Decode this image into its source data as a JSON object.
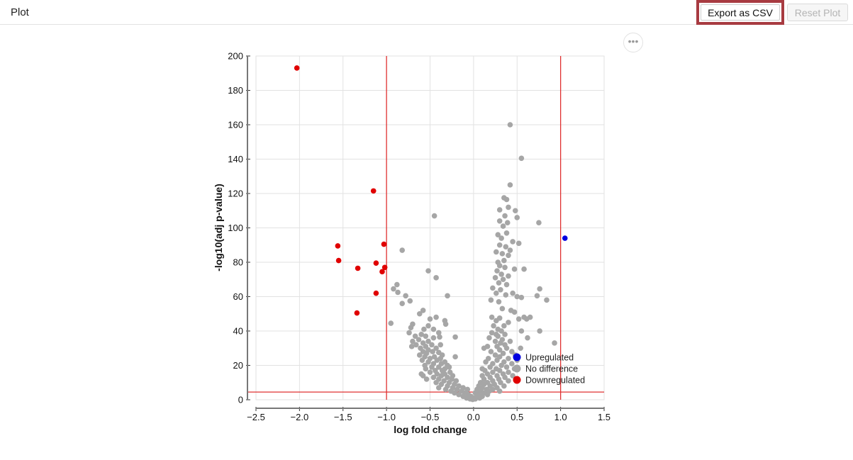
{
  "header": {
    "title": "Plot",
    "export_label": "Export as CSV",
    "reset_label": "Reset Plot",
    "more_icon": "ellipsis-icon",
    "more_symbol": "•••"
  },
  "colors": {
    "upregulated": "#0000e0",
    "no_difference": "#a6a6a6",
    "downregulated": "#e00000",
    "threshold": "#e03030",
    "highlight_border": "#a83b41"
  },
  "chart_data": {
    "type": "scatter",
    "title": "",
    "xlabel": "log fold change",
    "ylabel": "-log10(adj p-value)",
    "xlim": [
      -2.5,
      1.5
    ],
    "ylim": [
      0,
      200
    ],
    "x_ticks": [
      -2.5,
      -2.0,
      -1.5,
      -1.0,
      -0.5,
      0.0,
      0.5,
      1.0,
      1.5
    ],
    "x_tick_labels": [
      "−2.5",
      "−2.0",
      "−1.5",
      "−1.0",
      "−0.5",
      "0.0",
      "0.5",
      "1.0",
      "1.5"
    ],
    "y_ticks": [
      0,
      20,
      40,
      60,
      80,
      100,
      120,
      140,
      160,
      180,
      200
    ],
    "y_tick_labels": [
      "0",
      "20",
      "40",
      "60",
      "80",
      "100",
      "120",
      "140",
      "160",
      "180",
      "200"
    ],
    "grid": true,
    "thresholds": {
      "vertical": [
        -1.0,
        1.0
      ],
      "horizontal": 4.5
    },
    "legend": {
      "position": "bottom-right",
      "entries": [
        "Upregulated",
        "No difference",
        "Downregulated"
      ]
    },
    "series": [
      {
        "name": "Upregulated",
        "points": [
          [
            1.05,
            94
          ]
        ]
      },
      {
        "name": "Downregulated",
        "points": [
          [
            -2.03,
            193
          ],
          [
            -1.15,
            121.5
          ],
          [
            -1.56,
            89.5
          ],
          [
            -1.03,
            90.5
          ],
          [
            -1.55,
            81
          ],
          [
            -1.12,
            79.5
          ],
          [
            -1.33,
            76.5
          ],
          [
            -1.02,
            77
          ],
          [
            -1.05,
            74.5
          ],
          [
            -1.12,
            62
          ],
          [
            -1.34,
            50.5
          ]
        ]
      },
      {
        "name": "No difference",
        "points": [
          [
            0.42,
            160
          ],
          [
            0.55,
            140.5
          ],
          [
            0.42,
            125
          ],
          [
            0.35,
            117.5
          ],
          [
            0.38,
            116.5
          ],
          [
            0.4,
            112
          ],
          [
            0.3,
            110.5
          ],
          [
            0.48,
            110
          ],
          [
            0.36,
            107
          ],
          [
            0.5,
            106
          ],
          [
            0.3,
            104
          ],
          [
            0.39,
            103
          ],
          [
            0.75,
            103
          ],
          [
            -0.45,
            107
          ],
          [
            0.34,
            101
          ],
          [
            0.38,
            97
          ],
          [
            0.28,
            96
          ],
          [
            0.32,
            94
          ],
          [
            0.45,
            92
          ],
          [
            0.52,
            91
          ],
          [
            0.3,
            90
          ],
          [
            0.37,
            89
          ],
          [
            0.42,
            87
          ],
          [
            0.26,
            86
          ],
          [
            0.33,
            85
          ],
          [
            0.4,
            84
          ],
          [
            -0.82,
            87
          ],
          [
            0.35,
            81
          ],
          [
            0.28,
            80
          ],
          [
            0.3,
            78
          ],
          [
            0.36,
            77
          ],
          [
            0.47,
            76
          ],
          [
            0.58,
            76
          ],
          [
            0.27,
            75
          ],
          [
            0.32,
            73
          ],
          [
            0.4,
            72
          ],
          [
            -0.52,
            75
          ],
          [
            0.25,
            71
          ],
          [
            0.34,
            70
          ],
          [
            -0.43,
            71
          ],
          [
            0.29,
            68
          ],
          [
            0.38,
            67
          ],
          [
            -0.88,
            67
          ],
          [
            0.22,
            65
          ],
          [
            0.31,
            64
          ],
          [
            -0.92,
            64.5
          ],
          [
            0.76,
            64.5
          ],
          [
            -0.87,
            62.5
          ],
          [
            0.26,
            62
          ],
          [
            0.45,
            62
          ],
          [
            0.37,
            61
          ],
          [
            0.5,
            60
          ],
          [
            0.55,
            59.5
          ],
          [
            0.73,
            60.5
          ],
          [
            -0.3,
            60.5
          ],
          [
            -0.78,
            60.5
          ],
          [
            0.84,
            58
          ],
          [
            -0.73,
            57.5
          ],
          [
            0.2,
            58
          ],
          [
            0.29,
            57
          ],
          [
            -0.82,
            56
          ],
          [
            0.33,
            53
          ],
          [
            0.43,
            52
          ],
          [
            -0.58,
            52
          ],
          [
            0.47,
            51
          ],
          [
            -0.62,
            50
          ],
          [
            0.58,
            48
          ],
          [
            0.65,
            48
          ],
          [
            0.52,
            47
          ],
          [
            0.3,
            47.5
          ],
          [
            -0.43,
            48
          ],
          [
            0.21,
            48
          ],
          [
            0.61,
            47
          ],
          [
            -0.5,
            47
          ],
          [
            0.26,
            46
          ],
          [
            0.4,
            45
          ],
          [
            -0.95,
            44.5
          ],
          [
            -0.7,
            44
          ],
          [
            -0.32,
            44
          ],
          [
            0.23,
            43
          ],
          [
            0.35,
            43
          ],
          [
            -0.52,
            43
          ],
          [
            -0.72,
            42
          ],
          [
            0.28,
            41
          ],
          [
            -0.57,
            41
          ],
          [
            -0.46,
            41
          ],
          [
            0.32,
            40
          ],
          [
            0.55,
            40
          ],
          [
            0.76,
            40
          ],
          [
            -0.74,
            39
          ],
          [
            -0.4,
            39
          ],
          [
            0.21,
            39
          ],
          [
            -0.6,
            38
          ],
          [
            0.26,
            38
          ],
          [
            0.36,
            38
          ],
          [
            -0.67,
            37
          ],
          [
            -0.55,
            37
          ],
          [
            0.28,
            37
          ],
          [
            -0.46,
            36
          ],
          [
            0.62,
            36
          ],
          [
            0.18,
            36
          ],
          [
            -0.63,
            35
          ],
          [
            0.33,
            35
          ],
          [
            -0.21,
            36.5
          ],
          [
            -0.39,
            36.5
          ],
          [
            -0.7,
            34
          ],
          [
            -0.52,
            34
          ],
          [
            0.25,
            34
          ],
          [
            0.42,
            34
          ],
          [
            -0.58,
            33
          ],
          [
            0.31,
            33
          ],
          [
            0.93,
            33
          ],
          [
            -0.66,
            32
          ],
          [
            -0.48,
            32
          ],
          [
            -0.38,
            32
          ],
          [
            0.36,
            32
          ],
          [
            -0.71,
            31
          ],
          [
            -0.55,
            31
          ],
          [
            0.16,
            31
          ],
          [
            0.27,
            31
          ],
          [
            -0.61,
            30
          ],
          [
            -0.43,
            30
          ],
          [
            0.38,
            30
          ],
          [
            -0.52,
            29
          ],
          [
            0.3,
            29
          ],
          [
            0.12,
            30
          ],
          [
            -0.58,
            28
          ],
          [
            -0.47,
            28
          ],
          [
            0.2,
            28
          ],
          [
            0.44,
            28
          ],
          [
            -0.4,
            27.5
          ],
          [
            0.34,
            27
          ],
          [
            -0.54,
            27
          ],
          [
            -0.62,
            26
          ],
          [
            -0.36,
            26
          ],
          [
            0.25,
            26
          ],
          [
            0.48,
            26
          ],
          [
            -0.56,
            25
          ],
          [
            -0.45,
            25
          ],
          [
            0.3,
            25
          ],
          [
            -0.5,
            24
          ],
          [
            -0.38,
            24
          ],
          [
            0.17,
            24
          ],
          [
            0.4,
            24
          ],
          [
            -0.59,
            23
          ],
          [
            -0.42,
            23
          ],
          [
            0.27,
            23
          ],
          [
            -0.33,
            22
          ],
          [
            0.35,
            22
          ],
          [
            -0.52,
            22
          ],
          [
            -0.46,
            21
          ],
          [
            -0.37,
            21
          ],
          [
            0.14,
            22
          ],
          [
            0.22,
            21
          ],
          [
            0.44,
            21
          ],
          [
            -0.56,
            20
          ],
          [
            -0.3,
            20
          ],
          [
            0.32,
            20
          ],
          [
            -0.48,
            19
          ],
          [
            -0.4,
            19
          ],
          [
            0.19,
            19
          ],
          [
            0.38,
            19
          ],
          [
            -0.33,
            18
          ],
          [
            -0.55,
            18
          ],
          [
            0.26,
            18
          ],
          [
            0.47,
            18
          ],
          [
            -0.44,
            17
          ],
          [
            -0.36,
            17
          ],
          [
            0.13,
            17
          ],
          [
            0.3,
            17
          ],
          [
            -0.5,
            16
          ],
          [
            -0.27,
            16
          ],
          [
            0.22,
            16
          ],
          [
            0.4,
            16
          ],
          [
            -0.42,
            15
          ],
          [
            -0.33,
            15
          ],
          [
            0.16,
            15
          ],
          [
            0.34,
            15
          ],
          [
            -0.58,
            14
          ],
          [
            -0.37,
            14
          ],
          [
            -0.24,
            14
          ],
          [
            0.1,
            14
          ],
          [
            0.27,
            14
          ],
          [
            0.45,
            14
          ],
          [
            -0.46,
            13
          ],
          [
            -0.3,
            13
          ],
          [
            0.19,
            13
          ],
          [
            0.36,
            13
          ],
          [
            -0.54,
            12
          ],
          [
            -0.4,
            12
          ],
          [
            -0.25,
            12
          ],
          [
            0.12,
            12
          ],
          [
            0.29,
            12
          ],
          [
            -0.34,
            11
          ],
          [
            -0.2,
            11
          ],
          [
            0.22,
            11
          ],
          [
            0.4,
            11
          ],
          [
            -0.43,
            10
          ],
          [
            -0.28,
            10
          ],
          [
            0.08,
            10
          ],
          [
            0.16,
            10
          ],
          [
            0.31,
            10
          ],
          [
            -0.37,
            9
          ],
          [
            -0.22,
            9
          ],
          [
            0.12,
            9
          ],
          [
            0.24,
            9
          ],
          [
            -0.3,
            8
          ],
          [
            -0.17,
            8
          ],
          [
            0.06,
            8
          ],
          [
            0.19,
            8
          ],
          [
            0.35,
            8
          ],
          [
            -0.4,
            7
          ],
          [
            -0.24,
            7
          ],
          [
            -0.12,
            7
          ],
          [
            0.1,
            7
          ],
          [
            0.27,
            7
          ],
          [
            -0.32,
            6
          ],
          [
            -0.19,
            6
          ],
          [
            -0.07,
            6
          ],
          [
            0.04,
            6
          ],
          [
            0.15,
            6
          ],
          [
            0.22,
            6
          ],
          [
            -0.26,
            5
          ],
          [
            -0.14,
            5
          ],
          [
            0.08,
            5
          ],
          [
            0.18,
            5
          ],
          [
            0.3,
            5
          ],
          [
            -0.22,
            4
          ],
          [
            -0.1,
            4
          ],
          [
            0.02,
            4
          ],
          [
            0.12,
            4
          ],
          [
            -0.17,
            3
          ],
          [
            -0.06,
            3
          ],
          [
            0.06,
            3
          ],
          [
            0.16,
            3
          ],
          [
            -0.12,
            2
          ],
          [
            -0.03,
            2
          ],
          [
            0.04,
            2
          ],
          [
            0.1,
            2
          ],
          [
            -0.08,
            1
          ],
          [
            0.0,
            1
          ],
          [
            0.07,
            1
          ],
          [
            -0.04,
            0.5
          ],
          [
            0.02,
            0.5
          ],
          [
            -0.01,
            0.2
          ],
          [
            -0.33,
            46
          ],
          [
            -0.28,
            19
          ],
          [
            -0.21,
            25
          ],
          [
            0.54,
            30
          ],
          [
            0.1,
            18
          ],
          [
            -0.6,
            15
          ],
          [
            0.5,
            23
          ]
        ]
      }
    ]
  }
}
